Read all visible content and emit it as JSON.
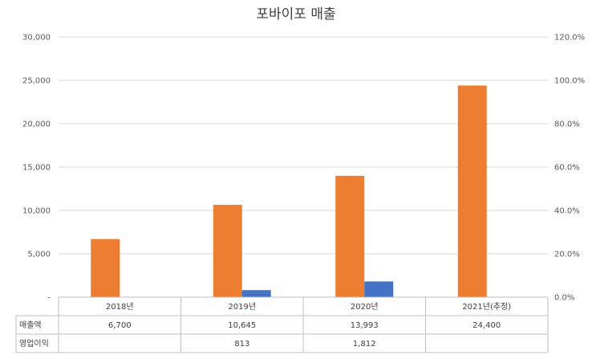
{
  "chart_data": {
    "type": "bar",
    "title": "포바이포 매출",
    "categories": [
      "2018년",
      "2019년",
      "2020년",
      "2021년(추정)"
    ],
    "series": [
      {
        "name": "매출액",
        "values": [
          6700,
          10645,
          13993,
          24400
        ],
        "labels": [
          "6,700",
          "10,645",
          "13,993",
          "24,400"
        ],
        "color": "#ED7D31"
      },
      {
        "name": "영업이익",
        "values": [
          null,
          813,
          1812,
          null
        ],
        "labels": [
          "",
          "813",
          "1,812",
          ""
        ],
        "color": "#4472C4"
      }
    ],
    "y_ticks": [
      "-",
      "5,000",
      "10,000",
      "15,000",
      "20,000",
      "25,000",
      "30,000"
    ],
    "y2_ticks": [
      "0.0%",
      "20.0%",
      "40.0%",
      "60.0%",
      "80.0%",
      "100.0%",
      "120.0%"
    ],
    "ylim": [
      0,
      30000
    ],
    "y2lim": [
      0,
      1.2
    ],
    "grid": true,
    "legend": "data-table"
  }
}
